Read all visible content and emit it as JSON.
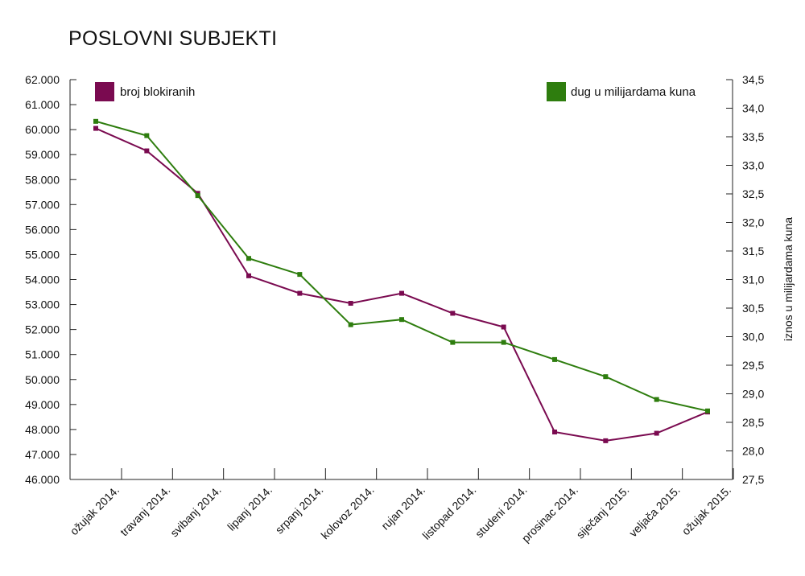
{
  "chart_data": {
    "type": "line",
    "title": "POSLOVNI SUBJEKTI",
    "categories": [
      "ožujak 2014.",
      "travanj 2014.",
      "svibanj 2014.",
      "lipanj 2014.",
      "srpanj 2014.",
      "kolovoz 2014.",
      "rujan 2014.",
      "listopad 2014.",
      "studeni 2014.",
      "prosinac 2014.",
      "siječanj 2015.",
      "veljača 2015.",
      "ožujak 2015."
    ],
    "left_axis": {
      "ylim": [
        46000,
        62000
      ],
      "ticks": [
        "46.000",
        "47.000",
        "48.000",
        "49.000",
        "50.000",
        "51.000",
        "52.000",
        "53.000",
        "54.000",
        "55.000",
        "56.000",
        "57.000",
        "58.000",
        "59.000",
        "60.000",
        "61.000",
        "62.000"
      ],
      "ylabel": ""
    },
    "right_axis": {
      "ylim": [
        27.5,
        34.5
      ],
      "ticks": [
        "27,5",
        "28,0",
        "28,5",
        "29,0",
        "29,5",
        "30,0",
        "30,5",
        "31,0",
        "31,5",
        "32,0",
        "32,5",
        "33,0",
        "33,5",
        "34,0",
        "34,5"
      ],
      "ylabel": "iznos u milijardama kuna"
    },
    "series": [
      {
        "name": "broj blokiranih",
        "axis": "left",
        "color": "#7a0a50",
        "values": [
          60050,
          59150,
          57450,
          54150,
          53450,
          53050,
          53450,
          52650,
          52100,
          47900,
          47550,
          47850,
          48700
        ]
      },
      {
        "name": "dug u milijardama kuna",
        "axis": "right",
        "color": "#2e7d0e",
        "values": [
          33.77,
          33.52,
          32.47,
          31.37,
          31.09,
          30.21,
          30.3,
          29.9,
          29.9,
          29.6,
          29.3,
          28.9,
          28.7
        ]
      }
    ],
    "legend": {
      "left": "top-left",
      "right": "top-right"
    },
    "grid": false
  }
}
